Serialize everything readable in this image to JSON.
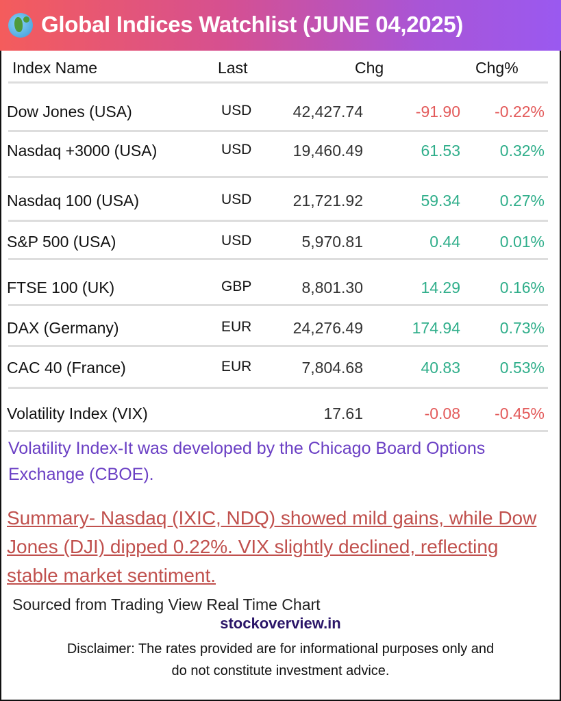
{
  "header": {
    "title": "Global Indices Watchlist (JUNE 04,2025)",
    "icon": "globe-icon"
  },
  "columns": [
    "Index Name",
    "Last",
    "Chg",
    "Chg%"
  ],
  "rows": [
    {
      "name": "Dow Jones (USA)",
      "currency": "USD",
      "last": "42,427.74",
      "chg": "-91.90",
      "pct": "-0.22%",
      "dir": "neg"
    },
    {
      "name": "Nasdaq +3000 (USA)",
      "currency": "USD",
      "last": "19,460.49",
      "chg": "61.53",
      "pct": "0.32%",
      "dir": "pos"
    },
    {
      "name": "Nasdaq 100 (USA)",
      "currency": "USD",
      "last": "21,721.92",
      "chg": "59.34",
      "pct": "0.27%",
      "dir": "pos"
    },
    {
      "name": "S&P 500 (USA)",
      "currency": "USD",
      "last": "5,970.81",
      "chg": "0.44",
      "pct": "0.01%",
      "dir": "pos"
    },
    {
      "name": "FTSE 100 (UK)",
      "currency": "GBP",
      "last": "8,801.30",
      "chg": "14.29",
      "pct": "0.16%",
      "dir": "pos"
    },
    {
      "name": "DAX (Germany)",
      "currency": "EUR",
      "last": "24,276.49",
      "chg": "174.94",
      "pct": "0.73%",
      "dir": "pos"
    },
    {
      "name": "CAC 40 (France)",
      "currency": "EUR",
      "last": "7,804.68",
      "chg": "40.83",
      "pct": "0.53%",
      "dir": "pos"
    },
    {
      "name": "Volatility Index (VIX)",
      "currency": "",
      "last": "17.61",
      "chg": "-0.08",
      "pct": "-0.45%",
      "dir": "neg"
    }
  ],
  "colors": {
    "negative": "#e35a5a",
    "positive": "#2fae8a",
    "note": "#6a3fc4",
    "summary": "#c0504d"
  },
  "note": "Volatility Index-It was developed by the Chicago Board Options Exchange (CBOE).",
  "summary": "Summary- Nasdaq (IXIC, NDQ) showed mild gains, while Dow Jones (DJI) dipped 0.22%. VIX slightly declined, reflecting stable market sentiment.",
  "source": "Sourced from Trading View Real Time Chart",
  "site": "stockoverview.in",
  "disclaimer": "Disclaimer: The rates provided are for informational purposes only and do not constitute investment advice."
}
